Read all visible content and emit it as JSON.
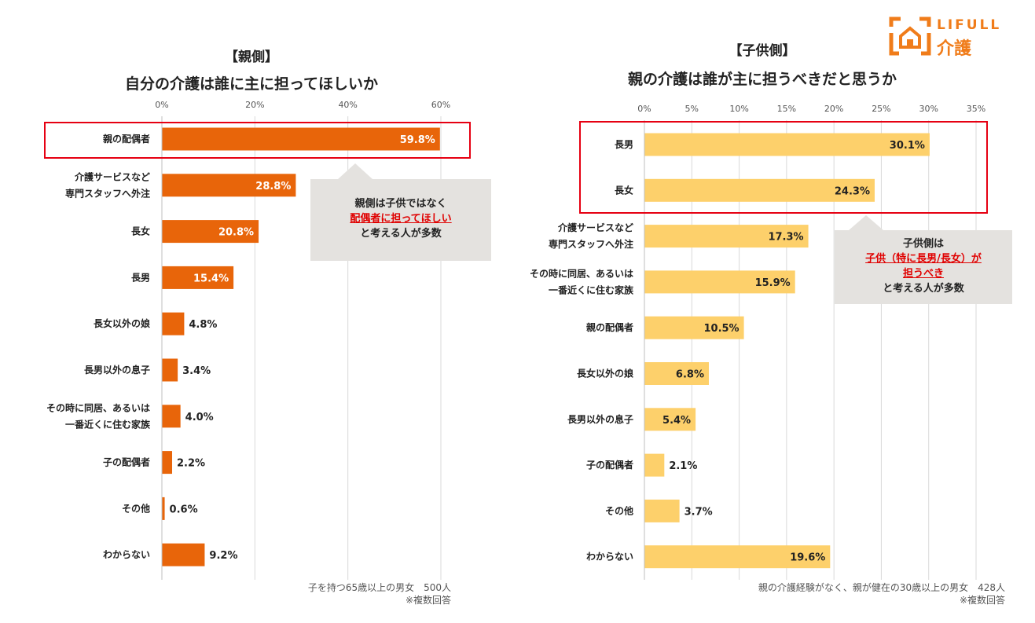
{
  "logo": {
    "text": "LIFULL",
    "sub": "介護",
    "color": "#f07c1a"
  },
  "chart_data": [
    {
      "type": "bar",
      "orientation": "horizontal",
      "title": "【親側】",
      "subtitle": "自分の介護は誰に主に担ってほしいか",
      "categories": [
        "親の配偶者",
        "介護サービスなど\n専門スタッフへ外注",
        "長女",
        "長男",
        "長女以外の娘",
        "長男以外の息子",
        "その時に同居、あるいは\n一番近くに住む家族",
        "子の配偶者",
        "その他",
        "わからない"
      ],
      "values": [
        59.8,
        28.8,
        20.8,
        15.4,
        4.8,
        3.4,
        4.0,
        2.2,
        0.6,
        9.2
      ],
      "value_labels": [
        "59.8%",
        "28.8%",
        "20.8%",
        "15.4%",
        "4.8%",
        "3.4%",
        "4.0%",
        "2.2%",
        "0.6%",
        "9.2%"
      ],
      "xticks": [
        "0%",
        "20%",
        "40%",
        "60%"
      ],
      "xlim": [
        0,
        60
      ],
      "grid": true,
      "bar_color": "#e8650a",
      "highlight_index": [
        0
      ],
      "callout": {
        "line1": "親側は子供ではなく",
        "line2": "配偶者に担ってほしい",
        "line3": "と考える人が多数"
      },
      "note1": "子を持つ65歳以上の男女　500人",
      "note2": "※複数回答"
    },
    {
      "type": "bar",
      "orientation": "horizontal",
      "title": "【子供側】",
      "subtitle": "親の介護は誰が主に担うべきだと思うか",
      "categories": [
        "長男",
        "長女",
        "介護サービスなど\n専門スタッフへ外注",
        "その時に同居、あるいは\n一番近くに住む家族",
        "親の配偶者",
        "長女以外の娘",
        "長男以外の息子",
        "子の配偶者",
        "その他",
        "わからない"
      ],
      "values": [
        30.1,
        24.3,
        17.3,
        15.9,
        10.5,
        6.8,
        5.4,
        2.1,
        3.7,
        19.6
      ],
      "value_labels": [
        "30.1%",
        "24.3%",
        "17.3%",
        "15.9%",
        "10.5%",
        "6.8%",
        "5.4%",
        "2.1%",
        "3.7%",
        "19.6%"
      ],
      "xticks": [
        "0%",
        "5%",
        "10%",
        "15%",
        "20%",
        "25%",
        "30%",
        "35%"
      ],
      "xlim": [
        0,
        35
      ],
      "grid": true,
      "bar_color": "#fdd06b",
      "highlight_index": [
        0,
        1
      ],
      "callout": {
        "line1": "子供側は",
        "line2": "子供（特に長男/長女）が",
        "line3": "担うべき",
        "line4": "と考える人が多数"
      },
      "note1": "親の介護経験がなく、親が健在の30歳以上の男女　428人",
      "note2": "※複数回答"
    }
  ]
}
